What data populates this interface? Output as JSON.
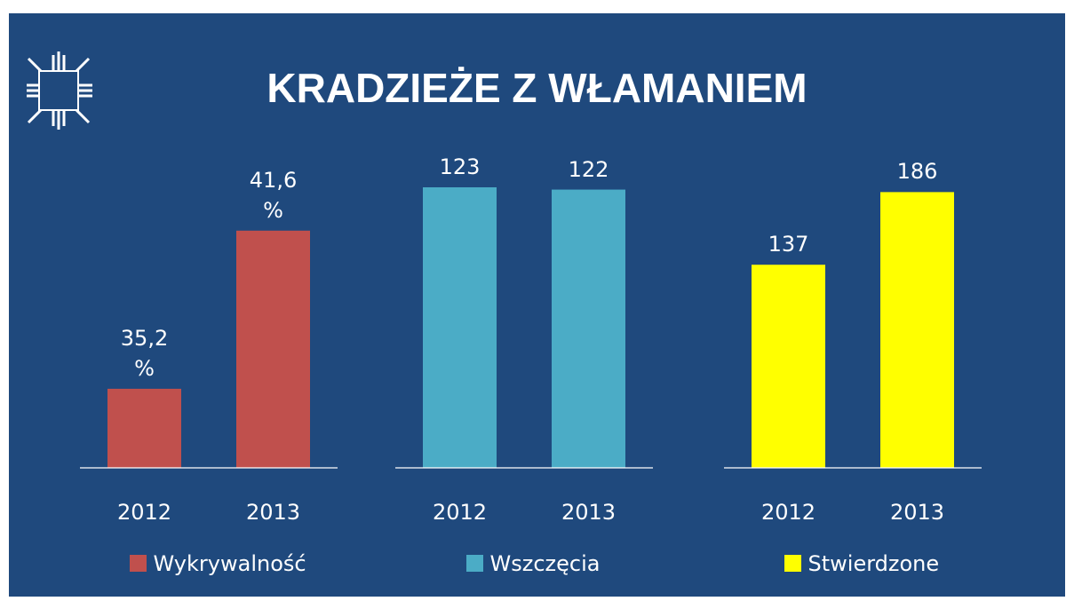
{
  "title": "KRADZIEŻE Z WŁAMANIEM",
  "chart_data": [
    {
      "type": "bar",
      "categories": [
        "2012",
        "2013"
      ],
      "ylim": [
        32,
        44
      ],
      "series": [
        {
          "name": "Wykrywalność",
          "color": "#c0504d",
          "values": [
            35.2,
            41.6
          ],
          "value_labels": [
            "35,2 %",
            "41,6 %"
          ]
        }
      ]
    },
    {
      "type": "bar",
      "categories": [
        "2012",
        "2013"
      ],
      "ylim": [
        0,
        130
      ],
      "series": [
        {
          "name": "Wszczęcia",
          "color": "#4bacc6",
          "values": [
            123,
            122
          ]
        }
      ]
    },
    {
      "type": "bar",
      "categories": [
        "2012",
        "2013"
      ],
      "ylim": [
        0,
        200
      ],
      "series": [
        {
          "name": "Stwierdzone",
          "color": "#ffff00",
          "values": [
            137,
            186
          ]
        }
      ]
    }
  ]
}
